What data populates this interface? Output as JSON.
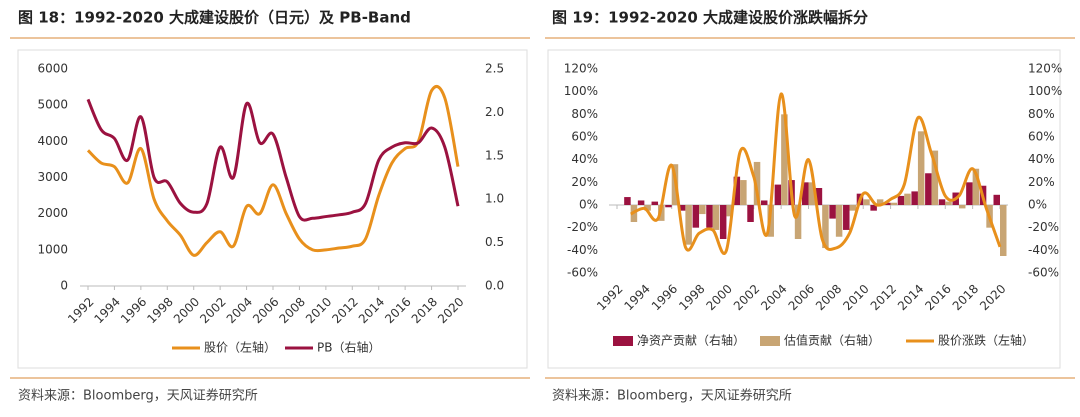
{
  "chart_data": [
    {
      "type": "line",
      "title": "图 18：1992-2020 大成建设股价（日元）及 PB-Band",
      "source": "资料来源：Bloomberg，天风证券研究所",
      "x": [
        1992,
        1993,
        1994,
        1995,
        1996,
        1997,
        1998,
        1999,
        2000,
        2001,
        2002,
        2003,
        2004,
        2005,
        2006,
        2007,
        2008,
        2009,
        2010,
        2011,
        2012,
        2013,
        2014,
        2015,
        2016,
        2017,
        2018,
        2019,
        2020
      ],
      "xlim": [
        1992,
        2020
      ],
      "xticks": [
        1992,
        1994,
        1996,
        1998,
        2000,
        2002,
        2004,
        2006,
        2008,
        2010,
        2012,
        2014,
        2016,
        2018,
        2020
      ],
      "ylim": [
        0,
        6000
      ],
      "yticks": [
        0,
        1000,
        2000,
        3000,
        4000,
        5000,
        6000
      ],
      "y2lim": [
        0,
        2.5
      ],
      "y2ticks": [
        {
          "value": 0,
          "label": "0.0"
        },
        0.5,
        {
          "value": 1,
          "label": "1.0"
        },
        1.5,
        {
          "value": 2,
          "label": "2.0"
        },
        2.5
      ],
      "series": [
        {
          "name": "股价（左轴）",
          "color": "#e8901c",
          "values": [
            3750,
            3400,
            3300,
            2850,
            3800,
            2400,
            1800,
            1400,
            850,
            1200,
            1500,
            1100,
            2200,
            2000,
            2800,
            2000,
            1300,
            1000,
            1000,
            1050,
            1100,
            1300,
            2500,
            3400,
            3800,
            4000,
            5400,
            5200,
            3300
          ]
        },
        {
          "name": "PB（右轴）",
          "color": "#9b1240",
          "axis": "y2",
          "values": [
            2.15,
            1.8,
            1.7,
            1.45,
            1.95,
            1.25,
            1.2,
            0.95,
            0.85,
            0.95,
            1.6,
            1.25,
            2.1,
            1.65,
            1.75,
            1.25,
            0.8,
            0.78,
            0.8,
            0.82,
            0.85,
            0.95,
            1.45,
            1.6,
            1.65,
            1.65,
            1.82,
            1.6,
            0.92
          ]
        }
      ]
    },
    {
      "type": "bar",
      "title": "图 19：1992-2020 大成建设股价涨跌幅拆分",
      "source": "资料来源：Bloomberg，天风证券研究所",
      "x": [
        1993,
        1994,
        1995,
        1996,
        1997,
        1998,
        1999,
        2000,
        2001,
        2002,
        2003,
        2004,
        2005,
        2006,
        2007,
        2008,
        2009,
        2010,
        2011,
        2012,
        2013,
        2014,
        2015,
        2016,
        2017,
        2018,
        2019,
        2020
      ],
      "xlim": [
        1992,
        2020
      ],
      "xticks": [
        1992,
        1994,
        1996,
        1998,
        2000,
        2002,
        2004,
        2006,
        2008,
        2010,
        2012,
        2014,
        2016,
        2018,
        2020
      ],
      "ylim": [
        -60,
        120
      ],
      "yticks": [
        {
          "value": -60,
          "label": "-60%"
        },
        {
          "value": -40,
          "label": "-40%"
        },
        {
          "value": -20,
          "label": "-20%"
        },
        {
          "value": 0,
          "label": "0%"
        },
        {
          "value": 20,
          "label": "20%"
        },
        {
          "value": 40,
          "label": "40%"
        },
        {
          "value": 60,
          "label": "60%"
        },
        {
          "value": 80,
          "label": "80%"
        },
        {
          "value": 100,
          "label": "100%"
        },
        {
          "value": 120,
          "label": "120%"
        }
      ],
      "y2lim": [
        -60,
        120
      ],
      "y2ticks": [
        {
          "value": -60,
          "label": "-60%"
        },
        {
          "value": -40,
          "label": "-40%"
        },
        {
          "value": -20,
          "label": "-20%"
        },
        {
          "value": 0,
          "label": "0%"
        },
        {
          "value": 20,
          "label": "20%"
        },
        {
          "value": 40,
          "label": "40%"
        },
        {
          "value": 60,
          "label": "60%"
        },
        {
          "value": 80,
          "label": "80%"
        },
        {
          "value": 100,
          "label": "100%"
        },
        {
          "value": 120,
          "label": "120%"
        }
      ],
      "series": [
        {
          "name": "净资产贡献（右轴）",
          "color": "#9b1240",
          "axis": "y2",
          "type": "bar",
          "values": [
            7,
            4,
            3,
            -2,
            -5,
            -20,
            -20,
            -30,
            25,
            -15,
            4,
            18,
            22,
            20,
            15,
            -12,
            -22,
            10,
            -5,
            2,
            8,
            12,
            28,
            5,
            11,
            20,
            17,
            9
          ]
        },
        {
          "name": "估值贡献（右轴）",
          "color": "#c8a574",
          "axis": "y2",
          "type": "bar",
          "values": [
            -15,
            -5,
            -14,
            36,
            -35,
            -8,
            -22,
            -10,
            22,
            38,
            -28,
            80,
            -30,
            20,
            -38,
            -28,
            -5,
            5,
            5,
            2,
            10,
            65,
            48,
            3,
            -3,
            32,
            -20,
            -45
          ]
        },
        {
          "name": "股价涨跌（左轴）",
          "color": "#e8901c",
          "type": "line",
          "values": [
            -8,
            -3,
            -12,
            35,
            -37,
            -25,
            -22,
            -40,
            47,
            25,
            -25,
            98,
            -10,
            40,
            -30,
            -38,
            -25,
            10,
            0,
            5,
            18,
            77,
            45,
            8,
            8,
            32,
            -3,
            -37
          ]
        }
      ]
    }
  ]
}
